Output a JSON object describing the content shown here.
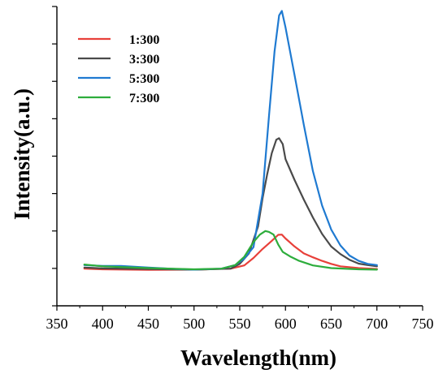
{
  "chart_data": {
    "type": "line",
    "title": "",
    "xlabel": "Wavelength(nm)",
    "ylabel": "Intensity(a.u.)",
    "xlim": [
      350,
      750
    ],
    "ylim": [
      0,
      100
    ],
    "x_ticks": [
      350,
      400,
      450,
      500,
      550,
      600,
      650,
      700,
      750
    ],
    "y_tick_labels_shown": false,
    "grid": false,
    "legend": "top-left",
    "series": [
      {
        "name": "1:300",
        "color": "#e8403a",
        "points": [
          [
            380,
            12.4
          ],
          [
            400,
            12.2
          ],
          [
            450,
            12.0
          ],
          [
            500,
            12.1
          ],
          [
            540,
            12.4
          ],
          [
            555,
            13.5
          ],
          [
            565,
            16.0
          ],
          [
            575,
            19.0
          ],
          [
            585,
            21.7
          ],
          [
            592,
            23.7
          ],
          [
            596,
            23.8
          ],
          [
            600,
            22.5
          ],
          [
            610,
            19.8
          ],
          [
            620,
            17.5
          ],
          [
            630,
            16.2
          ],
          [
            640,
            15.0
          ],
          [
            650,
            14.0
          ],
          [
            660,
            13.2
          ],
          [
            680,
            12.6
          ],
          [
            700,
            12.3
          ]
        ]
      },
      {
        "name": "3:300",
        "color": "#4a4a4a",
        "points": [
          [
            380,
            12.8
          ],
          [
            400,
            12.5
          ],
          [
            450,
            12.3
          ],
          [
            500,
            12.1
          ],
          [
            540,
            12.4
          ],
          [
            550,
            14.0
          ],
          [
            560,
            17.5
          ],
          [
            570,
            26.5
          ],
          [
            575,
            36.0
          ],
          [
            580,
            44.0
          ],
          [
            585,
            51.0
          ],
          [
            590,
            55.5
          ],
          [
            593,
            56.0
          ],
          [
            597,
            54.0
          ],
          [
            600,
            49.0
          ],
          [
            610,
            42.0
          ],
          [
            620,
            35.5
          ],
          [
            630,
            29.5
          ],
          [
            640,
            24.0
          ],
          [
            650,
            19.8
          ],
          [
            660,
            17.3
          ],
          [
            670,
            15.4
          ],
          [
            680,
            14.1
          ],
          [
            690,
            13.6
          ],
          [
            700,
            13.2
          ]
        ]
      },
      {
        "name": "5:300",
        "color": "#1f7ad1",
        "points": [
          [
            380,
            13.6
          ],
          [
            400,
            13.3
          ],
          [
            420,
            13.3
          ],
          [
            450,
            12.8
          ],
          [
            480,
            12.3
          ],
          [
            500,
            12.1
          ],
          [
            530,
            12.4
          ],
          [
            545,
            13.6
          ],
          [
            555,
            15.8
          ],
          [
            565,
            19.6
          ],
          [
            575,
            37.5
          ],
          [
            582,
            63.5
          ],
          [
            588,
            85.0
          ],
          [
            593,
            97.0
          ],
          [
            596,
            98.5
          ],
          [
            600,
            93.0
          ],
          [
            610,
            77.0
          ],
          [
            620,
            60.5
          ],
          [
            630,
            45.0
          ],
          [
            640,
            33.5
          ],
          [
            650,
            25.5
          ],
          [
            660,
            20.2
          ],
          [
            670,
            16.8
          ],
          [
            680,
            15.0
          ],
          [
            690,
            14.0
          ],
          [
            700,
            13.6
          ]
        ]
      },
      {
        "name": "7:300",
        "color": "#2dad3c",
        "points": [
          [
            380,
            13.8
          ],
          [
            400,
            13.2
          ],
          [
            450,
            12.6
          ],
          [
            500,
            12.2
          ],
          [
            530,
            12.4
          ],
          [
            545,
            13.6
          ],
          [
            555,
            16.4
          ],
          [
            565,
            21.3
          ],
          [
            572,
            23.8
          ],
          [
            578,
            25.0
          ],
          [
            582,
            24.7
          ],
          [
            587,
            23.8
          ],
          [
            592,
            20.5
          ],
          [
            597,
            18.0
          ],
          [
            605,
            16.5
          ],
          [
            615,
            15.0
          ],
          [
            630,
            13.5
          ],
          [
            650,
            12.6
          ],
          [
            680,
            12.2
          ],
          [
            700,
            12.1
          ]
        ]
      }
    ]
  }
}
